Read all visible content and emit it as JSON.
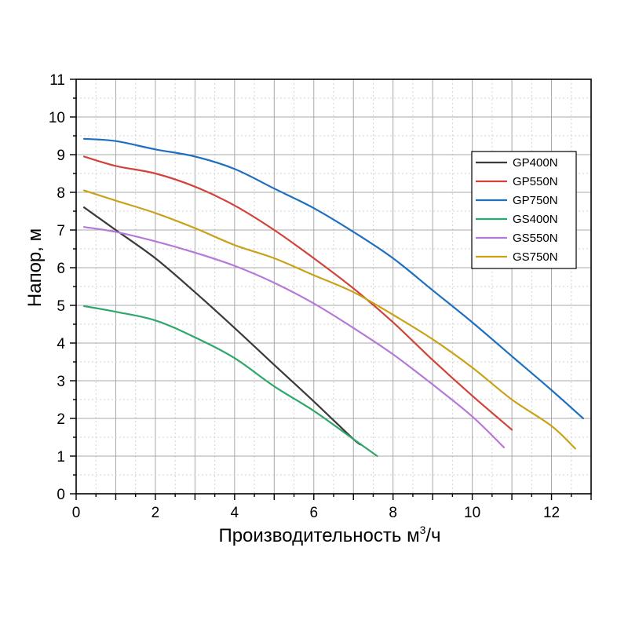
{
  "chart_data": {
    "type": "line",
    "xlabel_main": "Производительность м",
    "xlabel_sup": "3",
    "xlabel_tail": "/ч",
    "ylabel": "Напор, м",
    "xlim": [
      0,
      13
    ],
    "ylim": [
      0,
      11
    ],
    "xticks": [
      0,
      2,
      4,
      6,
      8,
      10,
      12
    ],
    "yticks": [
      0,
      1,
      2,
      3,
      4,
      5,
      6,
      7,
      8,
      9,
      10,
      11
    ],
    "grid": true,
    "legend_position": "top-right",
    "series": [
      {
        "name": "GP400N",
        "color": "#3a3a3a",
        "points": [
          [
            0.2,
            7.6
          ],
          [
            1,
            7.0
          ],
          [
            2,
            6.25
          ],
          [
            3,
            5.35
          ],
          [
            4,
            4.4
          ],
          [
            5,
            3.42
          ],
          [
            6,
            2.45
          ],
          [
            7,
            1.45
          ],
          [
            7.2,
            1.3
          ]
        ]
      },
      {
        "name": "GP550N",
        "color": "#d1433a",
        "points": [
          [
            0.2,
            8.95
          ],
          [
            1,
            8.7
          ],
          [
            2,
            8.5
          ],
          [
            3,
            8.15
          ],
          [
            4,
            7.65
          ],
          [
            5,
            7.0
          ],
          [
            6,
            6.25
          ],
          [
            7,
            5.45
          ],
          [
            8,
            4.55
          ],
          [
            9,
            3.55
          ],
          [
            10,
            2.6
          ],
          [
            11,
            1.7
          ]
        ]
      },
      {
        "name": "GP750N",
        "color": "#1f6fc0",
        "points": [
          [
            0.2,
            9.42
          ],
          [
            1,
            9.36
          ],
          [
            2,
            9.14
          ],
          [
            3,
            8.95
          ],
          [
            4,
            8.62
          ],
          [
            5,
            8.1
          ],
          [
            6,
            7.58
          ],
          [
            7,
            6.95
          ],
          [
            8,
            6.25
          ],
          [
            9,
            5.4
          ],
          [
            10,
            4.55
          ],
          [
            11,
            3.65
          ],
          [
            12,
            2.75
          ],
          [
            12.8,
            2.0
          ]
        ]
      },
      {
        "name": "GS400N",
        "color": "#2ea86a",
        "points": [
          [
            0.2,
            4.98
          ],
          [
            1,
            4.83
          ],
          [
            2,
            4.6
          ],
          [
            3,
            4.15
          ],
          [
            4,
            3.6
          ],
          [
            5,
            2.85
          ],
          [
            6,
            2.2
          ],
          [
            7,
            1.45
          ],
          [
            7.6,
            1.0
          ]
        ]
      },
      {
        "name": "GS550N",
        "color": "#b57ad8",
        "points": [
          [
            0.2,
            7.08
          ],
          [
            1,
            6.95
          ],
          [
            2,
            6.7
          ],
          [
            3,
            6.4
          ],
          [
            4,
            6.05
          ],
          [
            5,
            5.6
          ],
          [
            6,
            5.05
          ],
          [
            7,
            4.4
          ],
          [
            8,
            3.7
          ],
          [
            9,
            2.9
          ],
          [
            10,
            2.05
          ],
          [
            10.8,
            1.23
          ]
        ]
      },
      {
        "name": "GS750N",
        "color": "#c9a219",
        "points": [
          [
            0.2,
            8.05
          ],
          [
            1,
            7.78
          ],
          [
            2,
            7.45
          ],
          [
            3,
            7.05
          ],
          [
            4,
            6.6
          ],
          [
            5,
            6.25
          ],
          [
            6,
            5.8
          ],
          [
            7,
            5.35
          ],
          [
            8,
            4.75
          ],
          [
            9,
            4.1
          ],
          [
            10,
            3.35
          ],
          [
            11,
            2.5
          ],
          [
            12,
            1.8
          ],
          [
            12.6,
            1.2
          ]
        ]
      }
    ]
  }
}
